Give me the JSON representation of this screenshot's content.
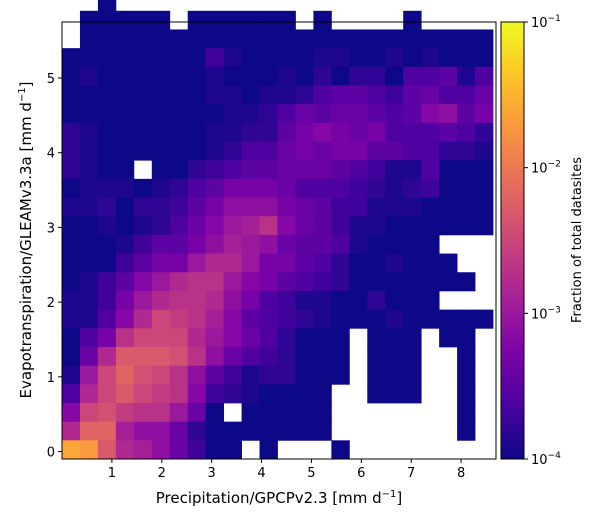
{
  "chart_data": {
    "type": "heatmap",
    "title": "",
    "xlabel_main": "Precipitation/GPCPv2.3 [mm d",
    "xlabel_sup": "−1",
    "xlabel_end": "]",
    "ylabel_main": "Evapotranspiration/GLEAMv3.3a [mm d",
    "ylabel_sup": "−1",
    "ylabel_end": "]",
    "xlim": [
      0.0,
      8.7
    ],
    "ylim": [
      -0.1,
      5.75
    ],
    "bin_width_x": 0.36,
    "bin_width_y": 0.25,
    "xticks": [
      1,
      2,
      3,
      4,
      5,
      6,
      7,
      8
    ],
    "xtick_labels": [
      "1",
      "2",
      "3",
      "4",
      "5",
      "6",
      "7",
      "8"
    ],
    "yticks": [
      0,
      1,
      2,
      3,
      4,
      5
    ],
    "ytick_labels": [
      "0",
      "1",
      "2",
      "3",
      "4",
      "5"
    ],
    "colormap": "plasma",
    "color_scale": "log",
    "color_range": [
      0.0001,
      0.1
    ],
    "colorbar_label": "Fraction of total datasites",
    "colorbar_ticks": [
      {
        "value": 0.1,
        "base": "10",
        "exp": "−1"
      },
      {
        "value": 0.01,
        "base": "10",
        "exp": "−2"
      },
      {
        "value": 0.001,
        "base": "10",
        "exp": "−3"
      },
      {
        "value": 0.0001,
        "base": "10",
        "exp": "−4"
      }
    ],
    "log10_fraction_grid_note_rows_from_top": "",
    "cells_top_to_bottom": [
      "-4.0 . . . . . . . . . . . . . . . . . . . . . . .",
      ". . -4.0 . . . . . . . . . . . . . . . . . . . . .",
      ". -4.0 -4.0 -4.0 -4.0 -4.0 . -4.0 -4.0 -4.0 -4.0 -4.0 -4.0 . -4.0 . . . . -4.0 . . . .",
      ". -4.0 -4.0 -4.0 -4.0 -4.0 -4.0 -4.0 -4.0 -4.0 -4.0 -4.0 -4.0 -4.0 -4.0 -4.0 -4.0 -4.0 -4.0 -4.0 -4.0 -4.0 -4.0 -4.0",
      "-4.0 -4.0 -4.0 -4.0 -4.0 -4.0 -4.0 -4.0 -3.7 -3.9 -4.0 -4.0 -4.0 -4.0 -3.9 -3.9 -4.0 -4.0 -3.9 -4.0 -3.9 -4.0 -4.0 -4.0",
      "-4.0 -3.9 -4.0 -4.0 -4.0 -4.0 -4.0 -4.0 -3.9 -4.0 -4.0 -4.0 -3.9 -4.0 -3.8 -4.0 -3.8 -3.8 -4.0 -3.6 -3.6 -3.5 -3.9 -3.6",
      "-4.0 -4.0 -4.0 -4.0 -4.0 -4.0 -4.0 -4.0 -3.9 -3.9 -4.0 -3.9 -3.9 -3.8 -3.6 -3.5 -3.5 -3.6 -3.7 -3.5 -3.4 -3.6 -3.6 -3.4",
      "-4.0 -4.0 -4.0 -4.0 -4.0 -4.0 -4.0 -4.0 -4.0 -3.9 -3.9 -3.8 -3.6 -3.4 -3.5 -3.4 -3.4 -3.5 -3.6 -3.5 -3.2 -3.1 -3.5 -3.3",
      "-3.8 -3.9 -4.0 -4.0 -4.0 -4.0 -4.0 -4.0 -3.9 -3.9 -3.8 -3.8 -3.5 -3.3 -3.2 -3.3 -3.4 -3.3 -3.6 -3.6 -3.6 -3.5 -3.6 -3.8",
      "-3.8 -3.9 -4.0 -4.0 -4.0 -4.0 -4.0 -4.0 -3.9 -3.8 -3.6 -3.6 -3.4 -3.3 -3.4 -3.3 -3.3 -3.5 -3.5 -3.6 -3.6 -3.8 -3.8 -3.9",
      "-3.8 -3.9 -4.0 -4.0 . -4.0 -4.0 -3.8 -3.7 -3.6 -3.5 -3.5 -3.4 -3.4 -3.4 -3.5 -3.6 -3.7 -3.9 -3.9 -3.6 -4.0 -4.0 -4.0",
      "-4.0 -3.9 -3.9 -3.9 -4.0 -3.9 -3.8 -3.6 -3.5 -3.3 -3.3 -3.3 -3.4 -3.6 -3.6 -3.6 -3.7 -3.8 -3.9 -3.8 -3.7 -4.0 -4.0 -4.0",
      "-3.9 -3.9 -3.8 -4.0 -3.8 -3.8 -3.7 -3.5 -3.3 -3.1 -3.1 -3.1 -3.3 -3.4 -3.5 -3.7 -3.7 -3.9 -3.9 -3.9 -4.0 -4.0 -4.0 -4.0",
      "-4.0 -4.0 -3.9 -4.0 -3.9 -3.8 -3.6 -3.4 -3.2 -3.0 -2.9 -2.7 -3.2 -3.4 -3.5 -3.7 -3.9 -3.9 -4.0 -4.0 -4.0 -4.0 -4.0 -4.0",
      "-4.0 -4.0 -4.0 -3.9 -3.7 -3.5 -3.5 -3.3 -3.1 -2.9 -3.0 -3.1 -3.4 -3.5 -3.5 -3.6 -3.9 -4.0 -4.0 -4.0 -4.0 . . .",
      "-4.0 -4.0 -4.0 -3.7 -3.5 -3.3 -3.3 -3.0 -2.8 -2.8 -3.0 -3.3 -3.3 -3.5 -3.6 -3.8 -4.0 -4.0 -3.9 -4.0 -4.0 -4.0 . .",
      "-4.0 -3.9 -3.7 -3.5 -3.2 -3.0 -2.8 -2.7 -2.7 -3.0 -3.2 -3.3 -3.5 -3.6 -3.7 -3.8 -4.0 -4.0 -4.0 -4.0 -4.0 -4.0 -4.0 .",
      "-3.9 -3.9 -3.7 -3.3 -3.0 -2.8 -2.7 -2.7 -2.8 -3.1 -3.3 -3.6 -3.7 -3.9 -3.9 -4.0 -4.0 -3.8 -4.0 -4.0 -4.0 . . .",
      "-3.9 -3.9 -3.6 -3.2 -2.8 -2.5 -2.6 -2.7 -2.9 -3.2 -3.5 -3.6 -3.7 -3.8 -3.9 -4.0 -4.0 -4.0 -3.9 -4.0 -4.0 -4.0 -4.0 -4.0",
      "-4.0 -3.6 -3.3 -2.7 -2.5 -2.5 -2.5 -2.8 -3.0 -3.2 -3.4 -3.6 -3.8 -4.0 -4.0 -4.0 . -4.0 -4.0 -4.0 . -4.0 -4.0 .",
      "-4.0 -3.4 -2.8 -2.3 -2.3 -2.3 -2.4 -2.7 -3.1 -3.4 -3.6 -3.7 -3.8 -4.0 -4.0 -4.0 . -4.0 -4.0 -4.0 . . -4.0 .",
      "-3.9 -3.0 -2.5 -2.2 -2.4 -2.5 -2.7 -3.1 -3.5 -3.7 -3.9 -3.8 -3.8 -4.0 -4.0 -4.0 . -4.0 -4.0 -4.0 . . -4.0 .",
      "-3.6 -2.8 -2.5 -2.3 -2.5 -2.6 -2.7 -3.2 -3.7 -3.8 -3.9 -4.0 -4.0 -4.0 -4.0 . . -4.0 -4.0 -4.0 . . -4.0 .",
      "-3.2 -2.5 -2.4 -2.6 -2.7 -2.7 -3.0 -3.4 -4.0 . -4.0 -4.0 -4.0 -4.0 -4.0 . . . . . . . -4.0 .",
      "-2.8 -2.2 -2.2 -2.9 -3.1 -3.1 -3.4 -3.8 -4.0 -4.0 -4.0 -4.0 -4.0 -4.0 -4.0 . . . . . . . -4.0 .",
      "-1.6 -1.7 -2.3 -2.8 -2.9 -3.1 -3.4 -3.7 -4.0 -4.0 . -4.0 . . . -4.0 . . . . . . . ."
    ]
  }
}
